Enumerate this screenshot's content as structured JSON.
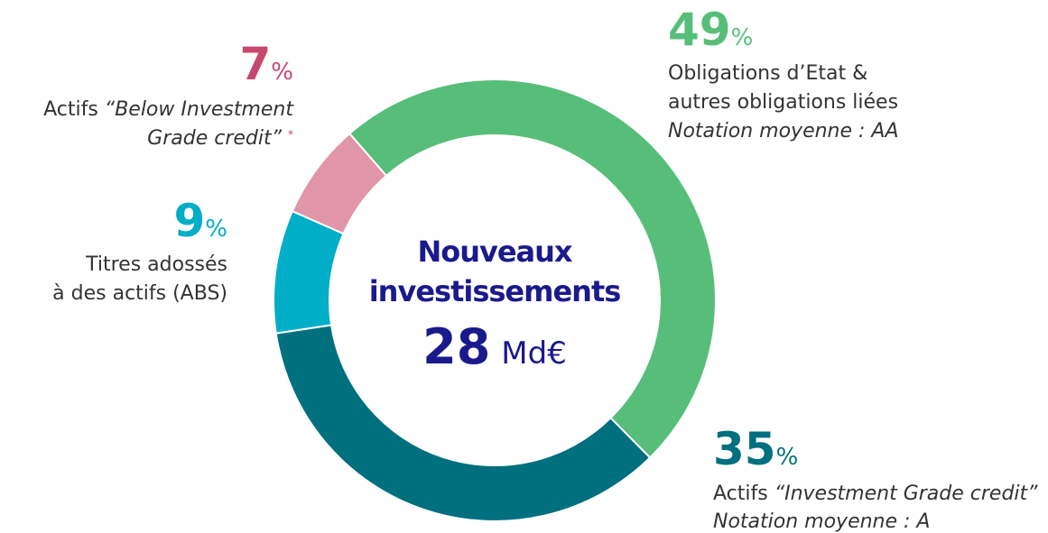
{
  "chart_data": {
    "type": "donut",
    "center": {
      "title_lines": [
        "Nouveaux",
        "investissements"
      ],
      "amount": "28",
      "unit": "Md€"
    },
    "value_unit": "%",
    "values": [
      49,
      35,
      9,
      7
    ],
    "colors": [
      "#57be7a",
      "#00707e",
      "#00aec7",
      "#e096a8"
    ],
    "value_colors": [
      "#57be7a",
      "#00707e",
      "#00aec7",
      "#c8476f"
    ],
    "label_lines": [
      [
        [
          {
            "text": "Obligations d’Etat &",
            "style": "normal"
          }
        ],
        [
          {
            "text": "autres obligations liées",
            "style": "normal"
          }
        ],
        [
          {
            "text": "Notation moyenne : AA",
            "style": "italic"
          }
        ]
      ],
      [
        [
          {
            "text": "Actifs ",
            "style": "normal"
          },
          {
            "text": "“Investment Grade credit”",
            "style": "italic"
          }
        ],
        [
          {
            "text": "Notation moyenne : A",
            "style": "italic"
          }
        ]
      ],
      [
        [
          {
            "text": "Titres adossés",
            "style": "normal"
          }
        ],
        [
          {
            "text": "à des actifs (ABS)",
            "style": "normal"
          }
        ]
      ],
      [
        [
          {
            "text": "Actifs ",
            "style": "normal"
          },
          {
            "text": "“Below Investment",
            "style": "italic"
          }
        ],
        [
          {
            "text": "Grade credit” ",
            "style": "italic"
          },
          {
            "text": "*",
            "style": "sup"
          }
        ]
      ]
    ]
  }
}
